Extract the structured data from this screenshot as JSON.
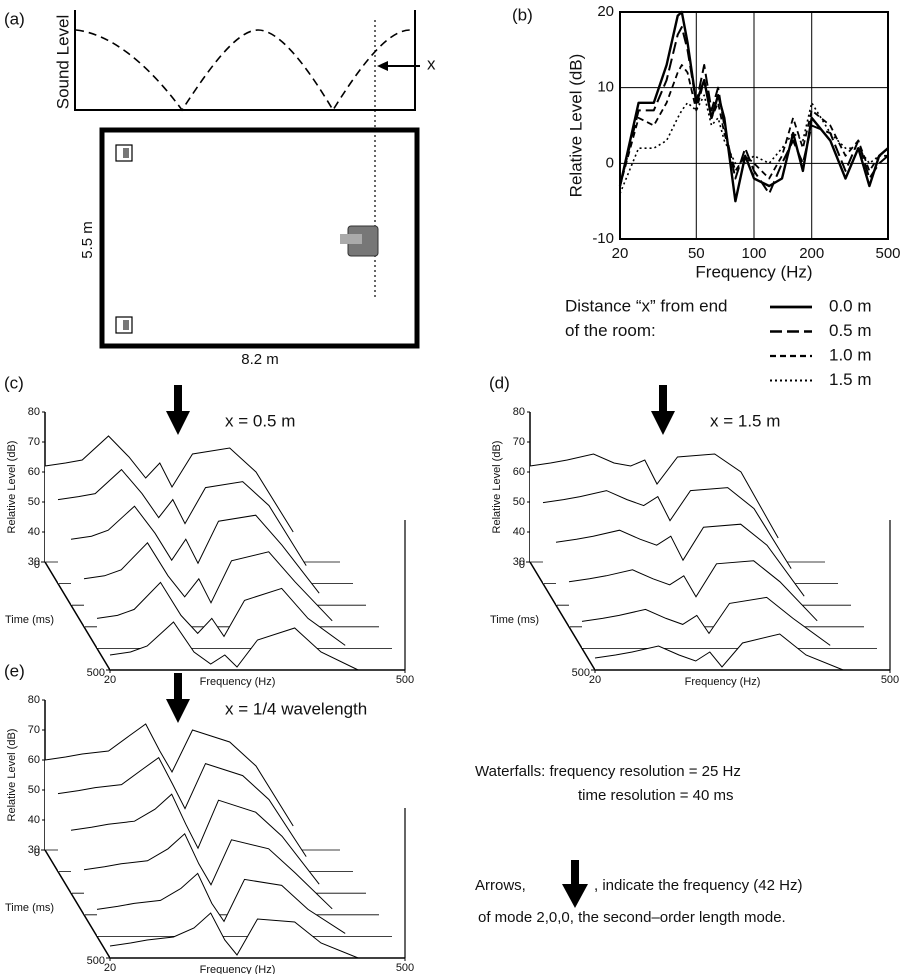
{
  "diagram": {
    "label": "(a)",
    "ylabel": "Sound Level",
    "marker": "x",
    "room_height": "5.5 m",
    "room_width": "8.2 m"
  },
  "chart_data": [
    {
      "type": "line",
      "panel_label": "(b)",
      "xlabel": "Frequency (Hz)",
      "ylabel": "Relative Level (dB)",
      "xscale": "log",
      "xlim": [
        20,
        500
      ],
      "xticks": [
        20,
        50,
        100,
        200,
        500
      ],
      "ylim": [
        -10,
        20
      ],
      "yticks": [
        -10,
        0,
        10,
        20
      ],
      "grid": true,
      "legend_title": [
        "Distance “x” from end",
        "of the room:"
      ],
      "x": [
        20,
        25,
        30,
        35,
        40,
        42,
        45,
        50,
        55,
        60,
        65,
        70,
        80,
        90,
        100,
        120,
        140,
        160,
        180,
        200,
        250,
        300,
        350,
        400,
        450,
        500
      ],
      "series": [
        {
          "name": "0.0 m",
          "color": "#000000",
          "dash": "none",
          "width": 2.4,
          "values": [
            -3,
            8,
            8,
            13,
            19.5,
            20,
            16,
            8,
            11,
            6,
            9,
            6,
            -5,
            1,
            -2,
            -3,
            -2,
            4,
            -1,
            6,
            3,
            -2,
            2,
            -3,
            1,
            2
          ]
        },
        {
          "name": "0.5 m",
          "color": "#000000",
          "dash": "12 5",
          "width": 2,
          "values": [
            -3,
            7,
            7,
            11,
            17,
            18,
            15,
            8,
            13,
            7,
            10,
            5,
            -2,
            2,
            -1,
            -4,
            0,
            3,
            0,
            5,
            4,
            -1,
            3,
            -2,
            0,
            1
          ]
        },
        {
          "name": "1.0 m",
          "color": "#000000",
          "dash": "6 4",
          "width": 1.8,
          "values": [
            -3,
            6,
            5,
            8,
            12,
            13,
            12,
            7,
            11,
            6,
            8,
            4,
            -1,
            1,
            0,
            -2,
            1,
            6,
            2,
            7,
            5,
            1,
            3,
            -1,
            1,
            1
          ]
        },
        {
          "name": "1.5 m",
          "color": "#000000",
          "dash": "2 3",
          "width": 1.6,
          "values": [
            -4,
            2,
            2,
            3,
            6,
            7,
            8,
            7,
            9,
            5,
            6,
            3,
            0,
            0,
            1,
            0,
            2,
            4,
            3,
            8,
            4,
            2,
            2,
            0,
            1,
            1
          ]
        }
      ]
    },
    {
      "type": "waterfall",
      "panel_label": "(c)",
      "annotation": "x = 0.5 m",
      "arrow_frequency": 42,
      "xlabel": "Frequency (Hz)",
      "ylabel": "Relative Level (dB)",
      "time_label": "Time (ms)",
      "xscale": "log",
      "xlim": [
        20,
        500
      ],
      "xticks": [
        20,
        500
      ],
      "ylim": [
        30,
        80
      ],
      "yticks": [
        30,
        40,
        50,
        60,
        70,
        80
      ],
      "time_lim": [
        0,
        500
      ],
      "time_ticks": [
        0,
        500
      ],
      "x": [
        20,
        25,
        30,
        40,
        50,
        60,
        70,
        80,
        100,
        150,
        200,
        300
      ],
      "series": [
        {
          "values": [
            62,
            63,
            64,
            72,
            65,
            58,
            63,
            55,
            66,
            68,
            60,
            40
          ]
        },
        {
          "values": [
            58,
            59,
            60,
            68,
            60,
            52,
            58,
            50,
            62,
            64,
            56,
            36
          ]
        },
        {
          "values": [
            52,
            53,
            55,
            63,
            54,
            45,
            52,
            44,
            58,
            60,
            50,
            34
          ]
        },
        {
          "values": [
            46,
            47,
            49,
            58,
            47,
            40,
            46,
            38,
            52,
            55,
            45,
            32
          ]
        },
        {
          "values": [
            40,
            41,
            43,
            52,
            41,
            35,
            40,
            34,
            46,
            50,
            40,
            31
          ]
        },
        {
          "values": [
            35,
            36,
            38,
            46,
            36,
            32,
            35,
            31,
            40,
            44,
            36,
            30
          ]
        }
      ]
    },
    {
      "type": "waterfall",
      "panel_label": "(d)",
      "annotation": "x = 1.5 m",
      "arrow_frequency": 42,
      "xlabel": "Frequency (Hz)",
      "ylabel": "Relative Level (dB)",
      "time_label": "Time (ms)",
      "xscale": "log",
      "xlim": [
        20,
        500
      ],
      "xticks": [
        20,
        500
      ],
      "ylim": [
        30,
        80
      ],
      "yticks": [
        30,
        40,
        50,
        60,
        70,
        80
      ],
      "time_lim": [
        0,
        500
      ],
      "time_ticks": [
        0,
        500
      ],
      "x": [
        20,
        25,
        30,
        40,
        50,
        60,
        70,
        80,
        100,
        150,
        200,
        300
      ],
      "series": [
        {
          "values": [
            62,
            63,
            64,
            66,
            63,
            62,
            64,
            56,
            65,
            66,
            60,
            38
          ]
        },
        {
          "values": [
            57,
            58,
            59,
            61,
            58,
            56,
            59,
            51,
            61,
            62,
            55,
            35
          ]
        },
        {
          "values": [
            51,
            52,
            53,
            55,
            52,
            50,
            53,
            45,
            56,
            57,
            50,
            33
          ]
        },
        {
          "values": [
            45,
            46,
            47,
            49,
            46,
            44,
            47,
            40,
            51,
            52,
            45,
            32
          ]
        },
        {
          "values": [
            39,
            40,
            41,
            43,
            40,
            38,
            41,
            35,
            45,
            47,
            40,
            31
          ]
        },
        {
          "values": [
            34,
            35,
            36,
            38,
            35,
            33,
            36,
            31,
            39,
            42,
            35,
            30
          ]
        }
      ]
    },
    {
      "type": "waterfall",
      "panel_label": "(e)",
      "annotation": "x = 1/4 wavelength",
      "arrow_frequency": 42,
      "xlabel": "Frequency (Hz)",
      "ylabel": "Relative Level (dB)",
      "time_label": "Time (ms)",
      "xscale": "log",
      "xlim": [
        20,
        500
      ],
      "xticks": [
        20,
        500
      ],
      "ylim": [
        30,
        80
      ],
      "yticks": [
        30,
        40,
        50,
        60,
        70,
        80
      ],
      "time_lim": [
        0,
        500
      ],
      "time_ticks": [
        0,
        500
      ],
      "x": [
        20,
        25,
        30,
        40,
        50,
        60,
        70,
        80,
        100,
        150,
        200,
        300
      ],
      "series": [
        {
          "values": [
            60,
            61,
            62,
            63,
            68,
            72,
            63,
            56,
            70,
            66,
            58,
            38
          ]
        },
        {
          "values": [
            56,
            57,
            58,
            59,
            64,
            68,
            59,
            51,
            66,
            62,
            54,
            35
          ]
        },
        {
          "values": [
            51,
            52,
            53,
            54,
            58,
            63,
            53,
            45,
            61,
            57,
            49,
            33
          ]
        },
        {
          "values": [
            45,
            46,
            47,
            48,
            52,
            57,
            47,
            40,
            55,
            52,
            44,
            32
          ]
        },
        {
          "values": [
            39,
            40,
            41,
            42,
            46,
            51,
            41,
            35,
            49,
            47,
            39,
            31
          ]
        },
        {
          "values": [
            34,
            35,
            36,
            37,
            40,
            45,
            36,
            31,
            43,
            42,
            35,
            30
          ]
        }
      ]
    }
  ],
  "notes": {
    "resolution": [
      "Waterfalls: frequency resolution = 25 Hz",
      "time resolution = 40 ms"
    ],
    "arrows": [
      "Arrows,",
      ", indicate the frequency (42 Hz)",
      "of mode 2,0,0, the second–order length mode."
    ]
  }
}
